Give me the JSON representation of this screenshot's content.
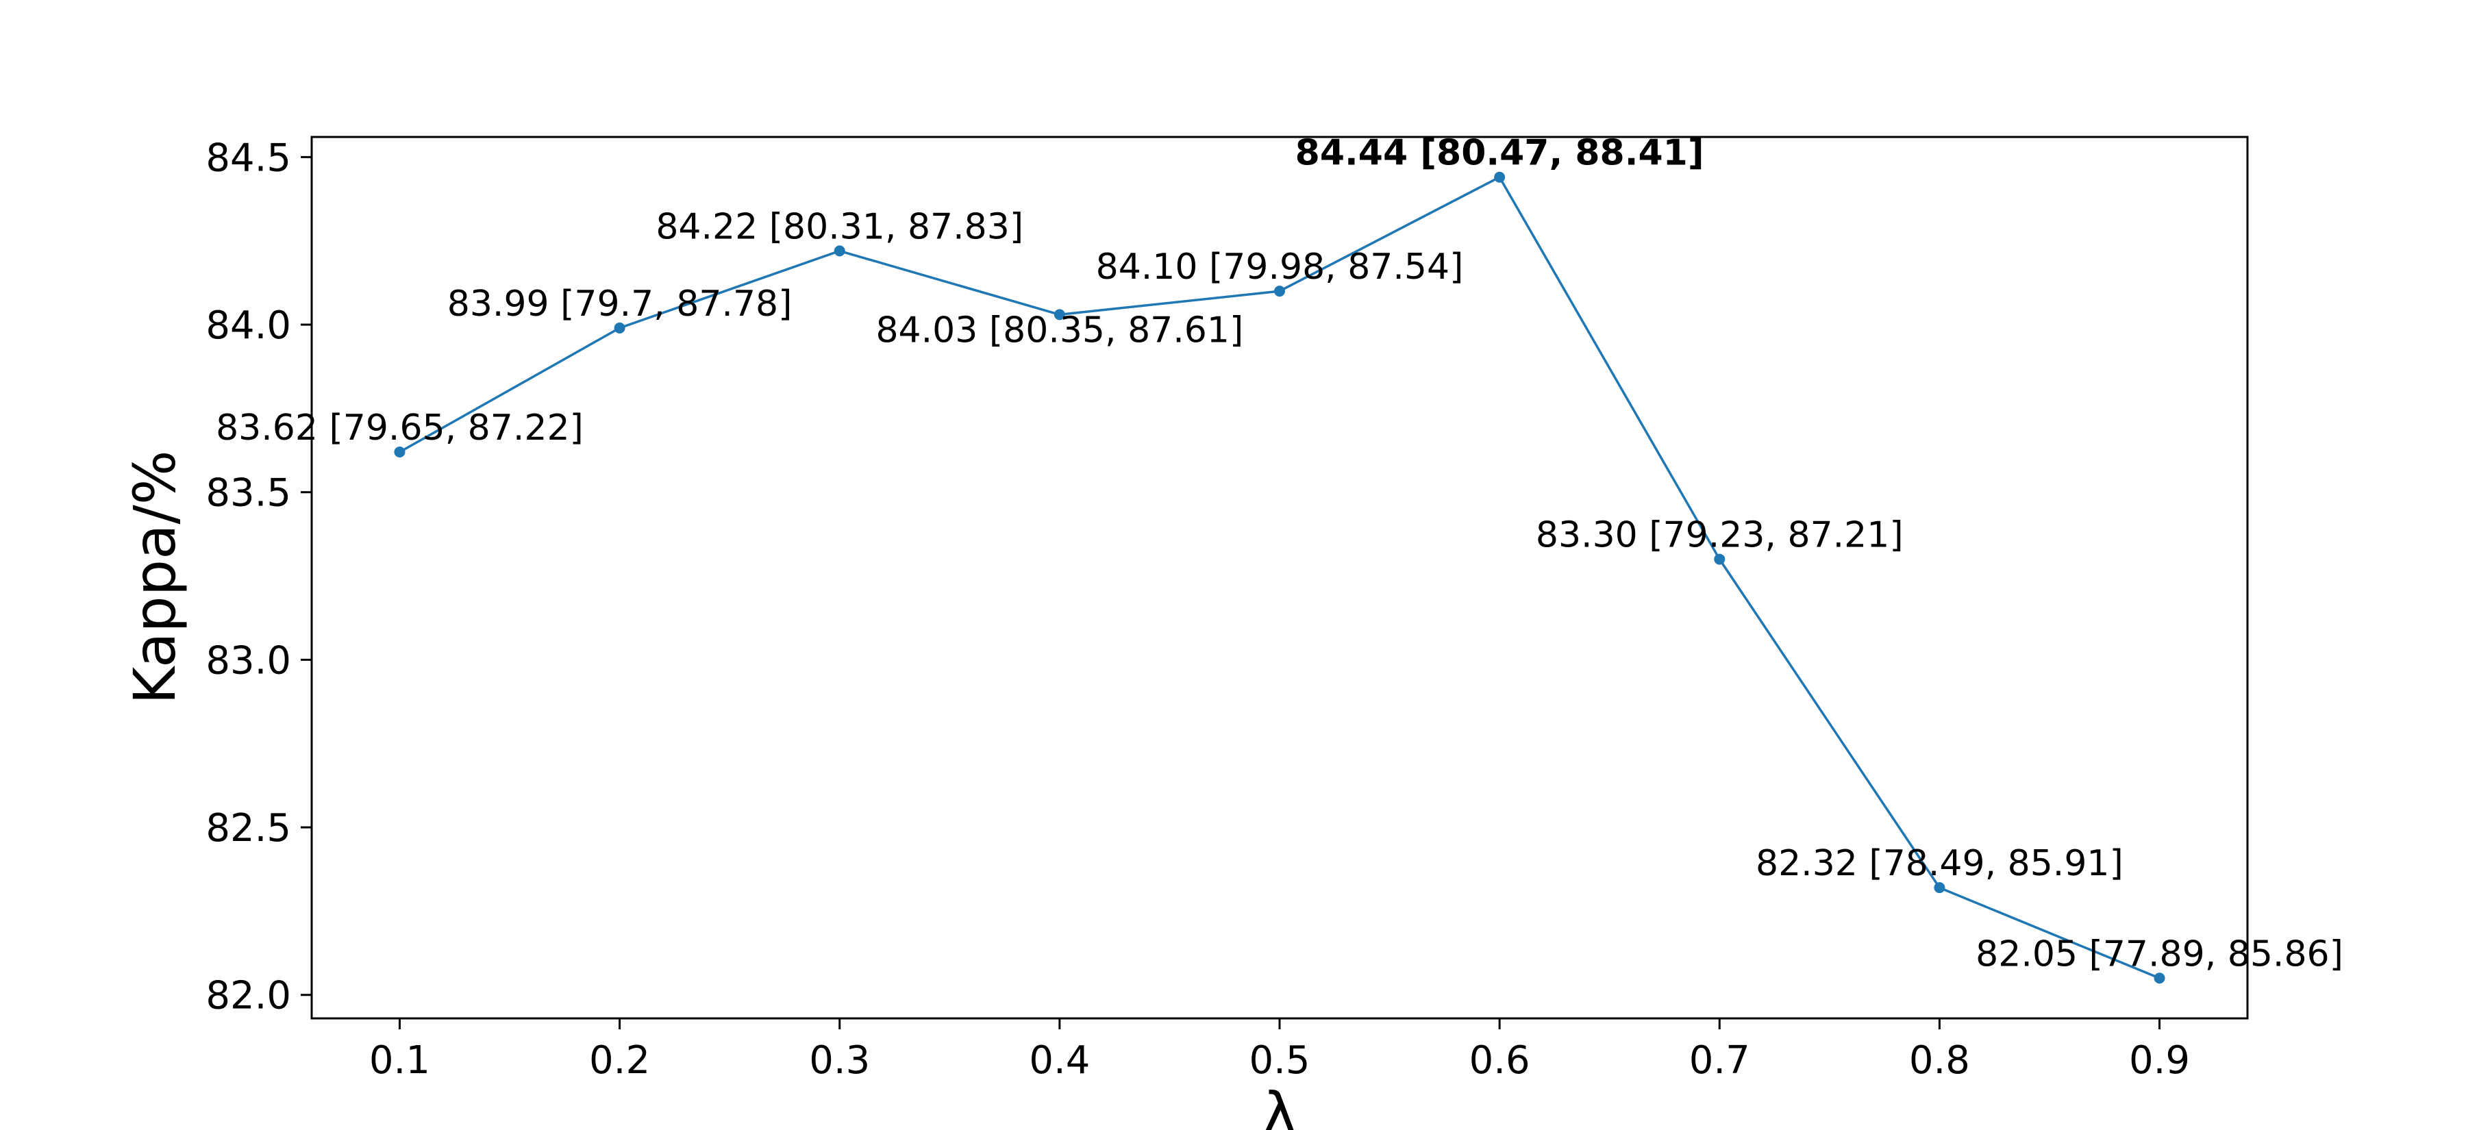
{
  "chart_data": {
    "type": "line",
    "xlabel": "λ",
    "ylabel": "Kappa/%",
    "x": [
      0.1,
      0.2,
      0.3,
      0.4,
      0.5,
      0.6,
      0.7,
      0.8,
      0.9
    ],
    "x_tick_labels": [
      "0.1",
      "0.2",
      "0.3",
      "0.4",
      "0.5",
      "0.6",
      "0.7",
      "0.8",
      "0.9"
    ],
    "y_tick_values": [
      82.0,
      82.5,
      83.0,
      83.5,
      84.0,
      84.5
    ],
    "y_tick_labels": [
      "82.0",
      "82.5",
      "83.0",
      "83.5",
      "84.0",
      "84.5"
    ],
    "xlim": [
      0.06,
      0.94
    ],
    "ylim": [
      81.93,
      84.56
    ],
    "grid": false,
    "series": [
      {
        "values": [
          83.62,
          83.99,
          84.22,
          84.03,
          84.1,
          84.44,
          83.3,
          82.32,
          82.05
        ],
        "color": "#1f77b4",
        "marker": "circle"
      }
    ],
    "annotations": [
      {
        "text": "83.62 [79.65, 87.22]",
        "bold": false
      },
      {
        "text": "83.99 [79.7, 87.78]",
        "bold": false
      },
      {
        "text": "84.22 [80.31, 87.83]",
        "bold": false
      },
      {
        "text": "84.03 [80.35, 87.61]",
        "bold": false
      },
      {
        "text": "84.10 [79.98, 87.54]",
        "bold": false
      },
      {
        "text": "84.44 [80.47, 88.41]",
        "bold": true
      },
      {
        "text": "83.30 [79.23, 87.21]",
        "bold": false
      },
      {
        "text": "82.32 [78.49, 85.91]",
        "bold": false
      },
      {
        "text": "82.05 [77.89, 85.86]",
        "bold": false
      }
    ]
  }
}
